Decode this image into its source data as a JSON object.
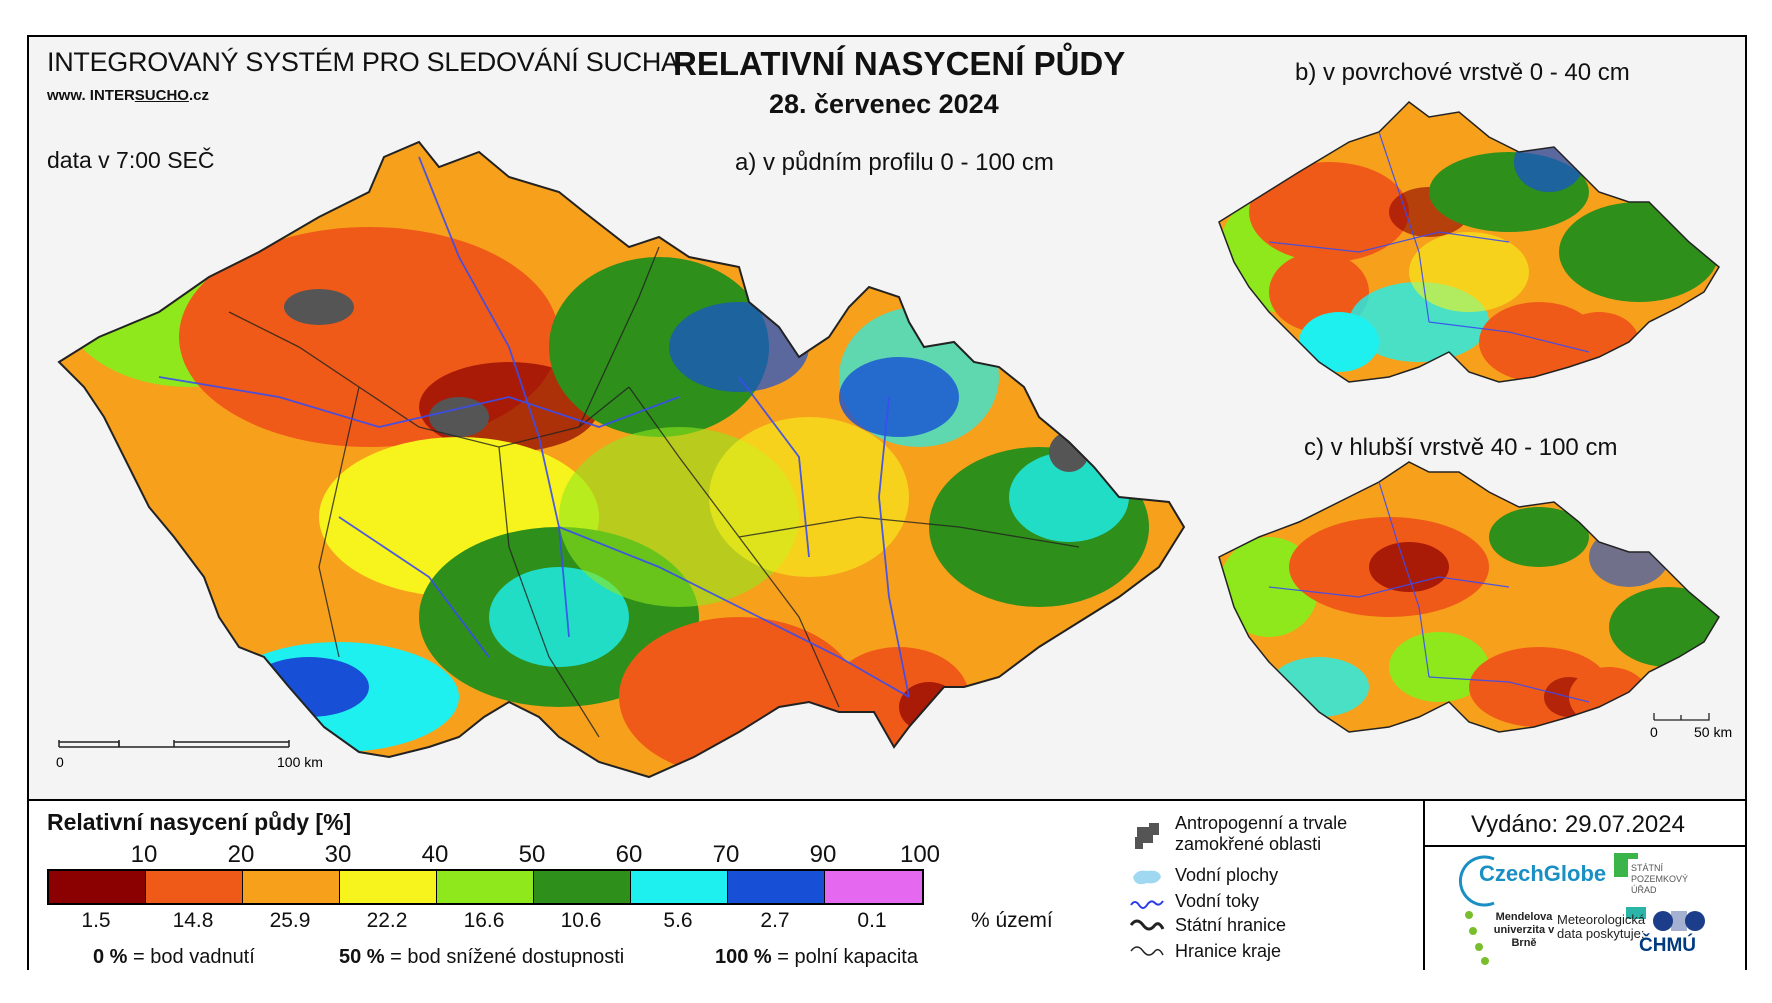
{
  "header": {
    "system": "INTEGROVANÝ SYSTÉM PRO SLEDOVÁNÍ SUCHA",
    "url_prefix": "www. INTER",
    "url_underline": "SUCHO",
    "url_suffix": ".cz",
    "data_time": "data v 7:00 SEČ",
    "title": "RELATIVNÍ NASYCENÍ PŮDY",
    "date": "28. červenec 2024",
    "panel_a": "a) v půdním profilu 0 - 100 cm",
    "panel_b": "b) v povrchové vrstvě 0 - 40 cm",
    "panel_c": "c) v hlubší vrstvě 40 - 100 cm"
  },
  "scale_bars": {
    "main_zero": "0",
    "main_end": "100 km",
    "small_zero": "0",
    "small_end": "50 km"
  },
  "legend": {
    "title": "Relativní nasycení půdy [%]",
    "ticks": [
      "10",
      "20",
      "30",
      "40",
      "50",
      "60",
      "70",
      "90",
      "100"
    ],
    "colors": [
      "#8b0000",
      "#f05a18",
      "#f7a01c",
      "#f7f31c",
      "#8fe81c",
      "#2e8f1a",
      "#1ef0f0",
      "#1750d6",
      "#e468f0"
    ],
    "territory_pct": [
      "1.5",
      "14.8",
      "25.9",
      "22.2",
      "16.6",
      "10.6",
      "5.6",
      "2.7",
      "0.1"
    ],
    "territory_label": "% území",
    "def0_val": "0 %",
    "def0_text": "= bod vadnutí",
    "def50_val": "50 %",
    "def50_text": "= bod snížené dostupnosti",
    "def100_val": "100 %",
    "def100_text": "= polní kapacita"
  },
  "symbols": {
    "anthropogenic": "Antropogenní a trvale zamokřené oblasti",
    "water_bodies": "Vodní plochy",
    "rivers": "Vodní toky",
    "state_border": "Státní hranice",
    "region_border": "Hranice kraje"
  },
  "footer": {
    "issued": "Vydáno: 29.07.2024",
    "czechglobe": "CzechGlobe",
    "spu": "STÁTNÍ POZEMKOVÝ ÚŘAD",
    "mendelu": "Mendelova univerzita v Brně",
    "met_data": "Meteorologická data poskytuje:",
    "chmu": "ČHMÚ"
  }
}
